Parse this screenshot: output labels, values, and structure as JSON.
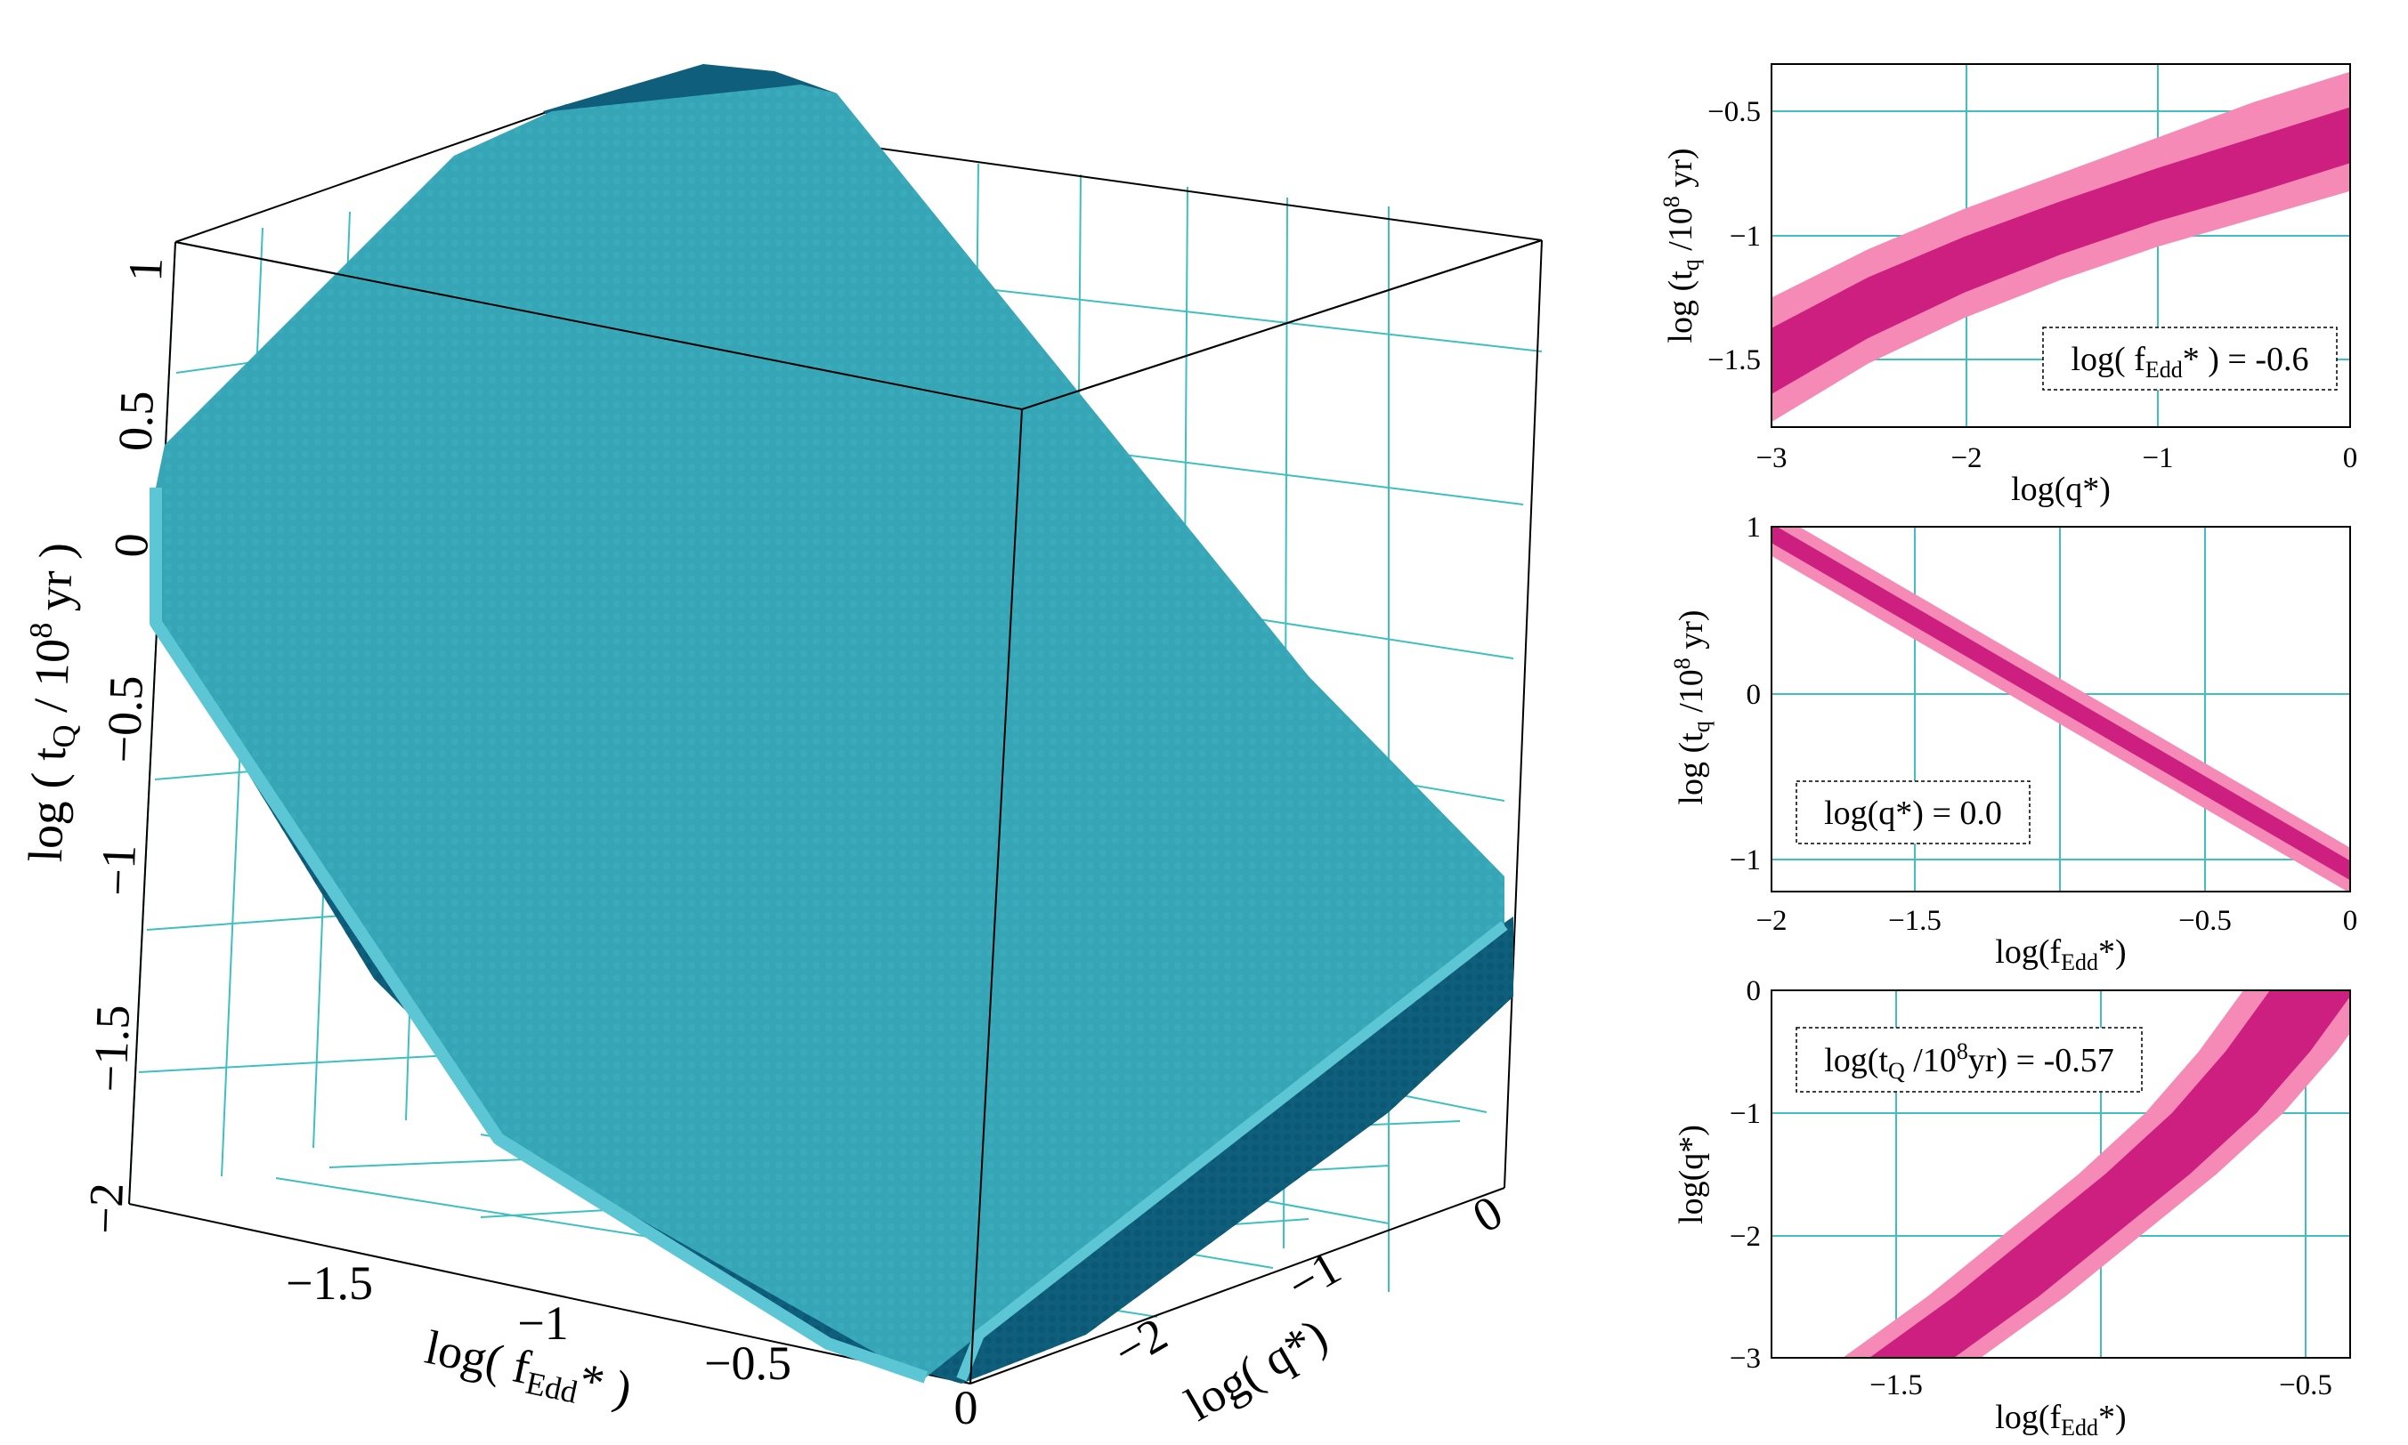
{
  "colors": {
    "grid": "#3fbfbf",
    "surface_top": "#36a6b6",
    "surface_side": "#0f5f7c",
    "surface_edge": "#4ab8c8",
    "band_inner": "#cc1f7f",
    "band_outer": "#f58ab7",
    "box_edge": "#000000"
  },
  "chart_data": [
    {
      "type": "scatter",
      "title": "",
      "projection": "3d",
      "zlabel": {
        "pre": "log ( t",
        "sub": "Q",
        "mid": " / 10",
        "sup": "8",
        "post": " yr )"
      },
      "xlabel": {
        "pre": "log( f",
        "sub": "Edd",
        "post": "* )"
      },
      "ylabel": {
        "pre": "log( q*)"
      },
      "xlim": [
        -2,
        0
      ],
      "ylim": [
        -3,
        0
      ],
      "zlim": [
        -2,
        1
      ],
      "x_ticks": [
        "−1.5",
        "−1",
        "−0.5",
        "0"
      ],
      "y_ticks": [
        "−2",
        "−1",
        "0"
      ],
      "z_ticks": [
        "1",
        "0.5",
        "0",
        "−0.5",
        "−1",
        "−1.5",
        "−2"
      ],
      "grid": true,
      "description_series": "solution surface of log t_Q over (log f_Edd*, log q*)"
    },
    {
      "type": "area",
      "xlabel": {
        "pre": "log(q*)"
      },
      "ylabel": {
        "pre": "log (t",
        "sub": "q",
        "mid": " /10",
        "sup": "8",
        "post": " yr)"
      },
      "xlim": [
        -3,
        0
      ],
      "ylim": [
        -1.78,
        -0.35
      ],
      "x_ticks": [
        "−3",
        "−2",
        "−1",
        "0"
      ],
      "y_ticks": [
        "−0.5",
        "−1",
        "−1.5"
      ],
      "grid": true,
      "annotation": {
        "pre": "log( f",
        "sub": "Edd",
        "post": "* ) = -0.6"
      },
      "bands": {
        "x": [
          -3,
          -2.5,
          -2,
          -1.5,
          -1,
          -0.5,
          0
        ],
        "outer_upper": [
          -1.27,
          -1.08,
          -0.92,
          -0.78,
          -0.64,
          -0.5,
          -0.38
        ],
        "inner_upper": [
          -1.39,
          -1.19,
          -1.03,
          -0.89,
          -0.76,
          -0.64,
          -0.52
        ],
        "inner_lower": [
          -1.65,
          -1.43,
          -1.25,
          -1.1,
          -0.97,
          -0.86,
          -0.74
        ],
        "outer_lower": [
          -1.76,
          -1.53,
          -1.35,
          -1.2,
          -1.07,
          -0.96,
          -0.85
        ]
      }
    },
    {
      "type": "area",
      "xlabel": {
        "pre": "log(f",
        "sub": "Edd",
        "post": "*)"
      },
      "ylabel": {
        "pre": "log (t",
        "sub": "q",
        "mid": " /10",
        "sup": "8",
        "post": " yr)"
      },
      "xlim": [
        -2,
        0
      ],
      "ylim": [
        -1.25,
        1
      ],
      "x_ticks": [
        "−2",
        "−1.5",
        "−0.5",
        "0"
      ],
      "y_ticks": [
        "1",
        "0",
        "−1"
      ],
      "grid": true,
      "annotation": {
        "pre": "log(q*) = 0.0"
      },
      "bands": {
        "x": [
          -2,
          -1.5,
          -1,
          -0.5,
          0
        ],
        "outer_upper": [
          1.1,
          0.58,
          0.06,
          -0.46,
          -0.98
        ],
        "inner_upper": [
          1.02,
          0.5,
          -0.02,
          -0.54,
          -1.06
        ],
        "inner_lower": [
          0.9,
          0.38,
          -0.14,
          -0.66,
          -1.18
        ],
        "outer_lower": [
          0.82,
          0.3,
          -0.22,
          -0.74,
          -1.26
        ]
      }
    },
    {
      "type": "area",
      "xlabel": {
        "pre": "log(f",
        "sub": "Edd",
        "post": "*)"
      },
      "ylabel": {
        "pre": "log(q*)"
      },
      "xlim": [
        -1.75,
        -0.45
      ],
      "ylim": [
        -3,
        0
      ],
      "x_ticks": [
        "−1.5",
        "−0.5"
      ],
      "y_ticks": [
        "0",
        "−1",
        "−2",
        "−3"
      ],
      "grid": true,
      "annotation": {
        "pre": "log(t",
        "sub": "Q",
        "mid": " /10",
        "sup": "8",
        "post": "yr) = -0.57"
      },
      "bands": {
        "y": [
          -3,
          -2.5,
          -2,
          -1.5,
          -1,
          -0.5,
          0
        ],
        "outer_left": [
          -1.59,
          -1.4,
          -1.23,
          -1.06,
          -0.91,
          -0.79,
          -0.69
        ],
        "inner_left": [
          -1.53,
          -1.34,
          -1.17,
          -1.0,
          -0.85,
          -0.73,
          -0.63
        ],
        "inner_right": [
          -1.34,
          -1.15,
          -0.98,
          -0.81,
          -0.66,
          -0.54,
          -0.44
        ],
        "outer_right": [
          -1.28,
          -1.09,
          -0.92,
          -0.75,
          -0.6,
          -0.48,
          -0.38
        ]
      }
    }
  ]
}
